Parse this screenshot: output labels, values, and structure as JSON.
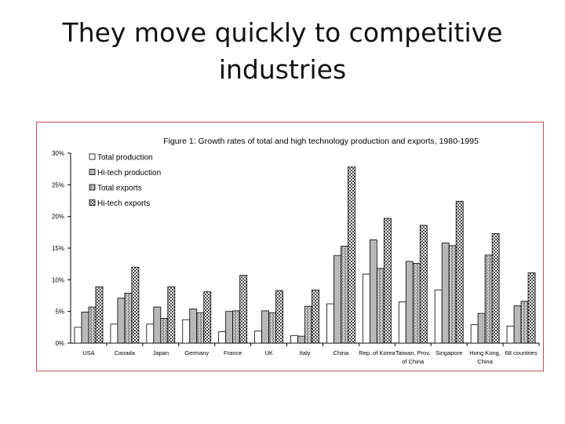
{
  "slide": {
    "title_line1": "They move quickly to competitive",
    "title_line2": "industries"
  },
  "chart_data": {
    "type": "bar",
    "title": "Figure 1: Growth rates of total and high technology production and exports, 1980-1995",
    "xlabel": "",
    "ylabel": "",
    "ylim": [
      0,
      30
    ],
    "yticks": [
      0,
      5,
      10,
      15,
      20,
      25,
      30
    ],
    "ytick_labels": [
      "0%",
      "5%",
      "10%",
      "15%",
      "20%",
      "25%",
      "30%"
    ],
    "grid": false,
    "legend_position": "top-left",
    "categories": [
      [
        "USA"
      ],
      [
        "Canada"
      ],
      [
        "Japan"
      ],
      [
        "Germany"
      ],
      [
        "France"
      ],
      [
        "UK"
      ],
      [
        "Italy"
      ],
      [
        "China"
      ],
      [
        "Rep. of Korea"
      ],
      [
        "Taiwan, Prov.",
        "of China"
      ],
      [
        "Singapore"
      ],
      [
        "Hong Kong,",
        "China"
      ],
      [
        "68 countries"
      ]
    ],
    "series": [
      {
        "name": "Total production",
        "fill": "#ffffff",
        "pattern": "solid",
        "values": [
          2.5,
          3.0,
          3.0,
          3.7,
          1.8,
          1.9,
          1.2,
          6.2,
          10.9,
          6.5,
          8.4,
          2.9,
          2.7
        ]
      },
      {
        "name": "Hi-tech production",
        "fill": "#b8b8b8",
        "pattern": "solid",
        "values": [
          4.9,
          7.1,
          5.7,
          5.4,
          5.0,
          5.1,
          1.1,
          13.8,
          16.3,
          12.9,
          15.8,
          4.7,
          5.9
        ]
      },
      {
        "name": "Total exports",
        "fill": "#a0a0a0",
        "pattern": "speckle",
        "values": [
          5.7,
          7.9,
          3.9,
          4.8,
          5.1,
          4.8,
          5.8,
          15.3,
          11.8,
          12.6,
          15.4,
          13.9,
          6.6
        ]
      },
      {
        "name": "Hi-tech exports",
        "fill": "#808080",
        "pattern": "checker",
        "values": [
          8.9,
          12.0,
          8.9,
          8.1,
          10.7,
          8.3,
          8.4,
          27.8,
          19.7,
          18.6,
          22.4,
          17.3,
          11.1
        ]
      }
    ]
  }
}
